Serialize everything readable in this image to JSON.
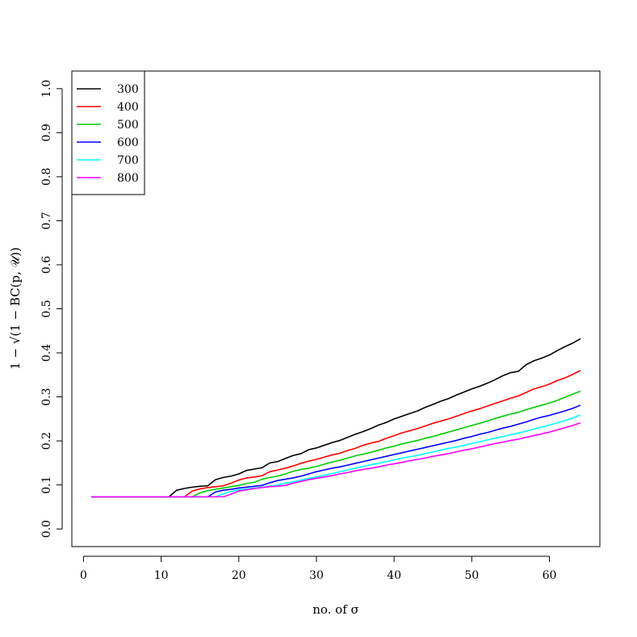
{
  "chart_data": {
    "type": "line",
    "title": "",
    "xlabel": "no. of σ",
    "ylabel": "1 − √(1 − BC(p, 𝒰))",
    "xlim": [
      -1.5,
      66.5
    ],
    "ylim": [
      -0.04,
      1.04
    ],
    "x_ticks": [
      "0",
      "10",
      "20",
      "30",
      "40",
      "50",
      "60"
    ],
    "y_ticks": [
      "0.0",
      "0.1",
      "0.2",
      "0.3",
      "0.4",
      "0.5",
      "0.6",
      "0.7",
      "0.8",
      "0.9",
      "1.0"
    ],
    "legend_position": "top-left",
    "x_start": 1,
    "x_step": 1,
    "series": [
      {
        "name": "300",
        "color": "#000000",
        "values": [
          0.073,
          0.073,
          0.073,
          0.073,
          0.073,
          0.073,
          0.073,
          0.073,
          0.073,
          0.073,
          0.073,
          0.088,
          0.092,
          0.095,
          0.097,
          0.098,
          0.112,
          0.117,
          0.12,
          0.125,
          0.133,
          0.136,
          0.139,
          0.15,
          0.153,
          0.16,
          0.167,
          0.171,
          0.18,
          0.184,
          0.19,
          0.196,
          0.201,
          0.208,
          0.215,
          0.221,
          0.228,
          0.236,
          0.242,
          0.25,
          0.256,
          0.262,
          0.268,
          0.276,
          0.283,
          0.29,
          0.296,
          0.304,
          0.311,
          0.318,
          0.324,
          0.331,
          0.339,
          0.348,
          0.355,
          0.358,
          0.373,
          0.382,
          0.388,
          0.395,
          0.405,
          0.414,
          0.422,
          0.432
        ]
      },
      {
        "name": "400",
        "color": "#ff0000",
        "values": [
          0.073,
          0.073,
          0.073,
          0.073,
          0.073,
          0.073,
          0.073,
          0.073,
          0.073,
          0.073,
          0.073,
          0.073,
          0.073,
          0.086,
          0.091,
          0.094,
          0.096,
          0.098,
          0.104,
          0.111,
          0.116,
          0.118,
          0.121,
          0.13,
          0.134,
          0.138,
          0.143,
          0.149,
          0.154,
          0.158,
          0.163,
          0.168,
          0.172,
          0.178,
          0.183,
          0.19,
          0.195,
          0.199,
          0.206,
          0.212,
          0.218,
          0.223,
          0.228,
          0.234,
          0.24,
          0.245,
          0.25,
          0.256,
          0.262,
          0.268,
          0.273,
          0.279,
          0.285,
          0.291,
          0.297,
          0.302,
          0.31,
          0.318,
          0.323,
          0.329,
          0.337,
          0.343,
          0.351,
          0.36
        ]
      },
      {
        "name": "500",
        "color": "#00cd00",
        "values": [
          0.073,
          0.073,
          0.073,
          0.073,
          0.073,
          0.073,
          0.073,
          0.073,
          0.073,
          0.073,
          0.073,
          0.073,
          0.073,
          0.073,
          0.082,
          0.087,
          0.09,
          0.093,
          0.096,
          0.099,
          0.103,
          0.106,
          0.113,
          0.117,
          0.12,
          0.125,
          0.131,
          0.135,
          0.138,
          0.142,
          0.147,
          0.152,
          0.156,
          0.161,
          0.166,
          0.17,
          0.174,
          0.179,
          0.184,
          0.188,
          0.193,
          0.197,
          0.201,
          0.206,
          0.21,
          0.215,
          0.22,
          0.225,
          0.23,
          0.235,
          0.24,
          0.245,
          0.251,
          0.256,
          0.261,
          0.265,
          0.271,
          0.276,
          0.281,
          0.286,
          0.292,
          0.299,
          0.306,
          0.313
        ]
      },
      {
        "name": "600",
        "color": "#0000ff",
        "values": [
          0.073,
          0.073,
          0.073,
          0.073,
          0.073,
          0.073,
          0.073,
          0.073,
          0.073,
          0.073,
          0.073,
          0.073,
          0.073,
          0.073,
          0.073,
          0.073,
          0.084,
          0.088,
          0.09,
          0.093,
          0.095,
          0.097,
          0.099,
          0.105,
          0.11,
          0.113,
          0.116,
          0.12,
          0.125,
          0.13,
          0.134,
          0.138,
          0.141,
          0.145,
          0.149,
          0.153,
          0.157,
          0.161,
          0.165,
          0.169,
          0.173,
          0.177,
          0.181,
          0.185,
          0.189,
          0.193,
          0.197,
          0.201,
          0.206,
          0.21,
          0.215,
          0.219,
          0.224,
          0.229,
          0.233,
          0.238,
          0.243,
          0.249,
          0.254,
          0.258,
          0.263,
          0.268,
          0.274,
          0.281
        ]
      },
      {
        "name": "700",
        "color": "#00ffff",
        "values": [
          0.073,
          0.073,
          0.073,
          0.073,
          0.073,
          0.073,
          0.073,
          0.073,
          0.073,
          0.073,
          0.073,
          0.073,
          0.073,
          0.073,
          0.073,
          0.073,
          0.073,
          0.08,
          0.085,
          0.089,
          0.091,
          0.093,
          0.095,
          0.097,
          0.1,
          0.104,
          0.107,
          0.111,
          0.115,
          0.118,
          0.122,
          0.126,
          0.13,
          0.134,
          0.138,
          0.142,
          0.146,
          0.149,
          0.153,
          0.157,
          0.161,
          0.164,
          0.167,
          0.171,
          0.175,
          0.179,
          0.183,
          0.186,
          0.19,
          0.194,
          0.198,
          0.202,
          0.206,
          0.21,
          0.214,
          0.218,
          0.222,
          0.227,
          0.231,
          0.236,
          0.241,
          0.246,
          0.252,
          0.259
        ]
      },
      {
        "name": "800",
        "color": "#ff00ff",
        "values": [
          0.073,
          0.073,
          0.073,
          0.073,
          0.073,
          0.073,
          0.073,
          0.073,
          0.073,
          0.073,
          0.073,
          0.073,
          0.073,
          0.073,
          0.073,
          0.073,
          0.073,
          0.073,
          0.079,
          0.086,
          0.089,
          0.092,
          0.094,
          0.096,
          0.097,
          0.099,
          0.104,
          0.108,
          0.112,
          0.115,
          0.118,
          0.121,
          0.125,
          0.128,
          0.132,
          0.135,
          0.138,
          0.141,
          0.145,
          0.148,
          0.151,
          0.155,
          0.158,
          0.161,
          0.165,
          0.168,
          0.171,
          0.175,
          0.179,
          0.182,
          0.186,
          0.19,
          0.194,
          0.197,
          0.201,
          0.204,
          0.208,
          0.212,
          0.216,
          0.22,
          0.225,
          0.23,
          0.235,
          0.241
        ]
      }
    ]
  }
}
